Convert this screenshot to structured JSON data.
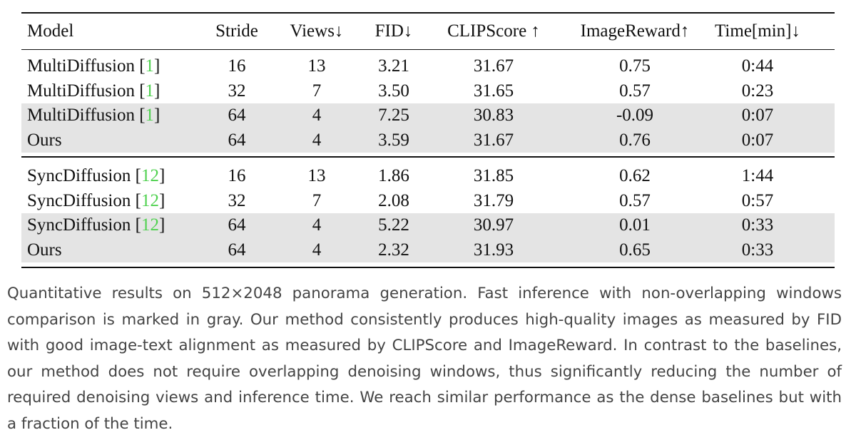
{
  "table": {
    "header": [
      "Model",
      "Stride",
      "Views↓",
      "FID↓",
      "CLIPScore ↑",
      "ImageReward↑",
      "Time[min]↓"
    ],
    "groups": [
      {
        "rows": [
          {
            "model": [
              "MultiDiffusion [",
              "1",
              "]"
            ],
            "cells": [
              "16",
              "13",
              "3.21",
              "31.67",
              "0.75",
              "0:44"
            ],
            "shaded": false
          },
          {
            "model": [
              "MultiDiffusion [",
              "1",
              "]"
            ],
            "cells": [
              "32",
              "7",
              "3.50",
              "31.65",
              "0.57",
              "0:23"
            ],
            "shaded": false
          },
          {
            "model": [
              "MultiDiffusion [",
              "1",
              "]"
            ],
            "cells": [
              "64",
              "4",
              "7.25",
              "30.83",
              "-0.09",
              "0:07"
            ],
            "shaded": true
          },
          {
            "model": [
              "Ours"
            ],
            "cells": [
              "64",
              "4",
              "3.59",
              "31.67",
              "0.76",
              "0:07"
            ],
            "shaded": true
          }
        ]
      },
      {
        "rows": [
          {
            "model": [
              "SyncDiffusion [",
              "12",
              "]"
            ],
            "cells": [
              "16",
              "13",
              "1.86",
              "31.85",
              "0.62",
              "1:44"
            ],
            "shaded": false
          },
          {
            "model": [
              "SyncDiffusion [",
              "12",
              "]"
            ],
            "cells": [
              "32",
              "7",
              "2.08",
              "31.79",
              "0.57",
              "0:57"
            ],
            "shaded": false
          },
          {
            "model": [
              "SyncDiffusion [",
              "12",
              "]"
            ],
            "cells": [
              "64",
              "4",
              "5.22",
              "30.97",
              "0.01",
              "0:33"
            ],
            "shaded": true
          },
          {
            "model": [
              "Ours"
            ],
            "cells": [
              "64",
              "4",
              "2.32",
              "31.93",
              "0.65",
              "0:33"
            ],
            "shaded": true
          }
        ]
      }
    ]
  },
  "caption": "Quantitative results on 512×2048 panorama generation. Fast inference with non-overlapping windows comparison is marked in gray. Our method consistently produces high-quality images as measured by FID with good image-text alignment as measured by CLIPScore and ImageReward. In contrast to the baselines, our method does not require overlapping denoising windows, thus significantly reducing the number of required denoising views and inference time. We reach similar performance as the dense baselines but with a fraction of the time."
}
